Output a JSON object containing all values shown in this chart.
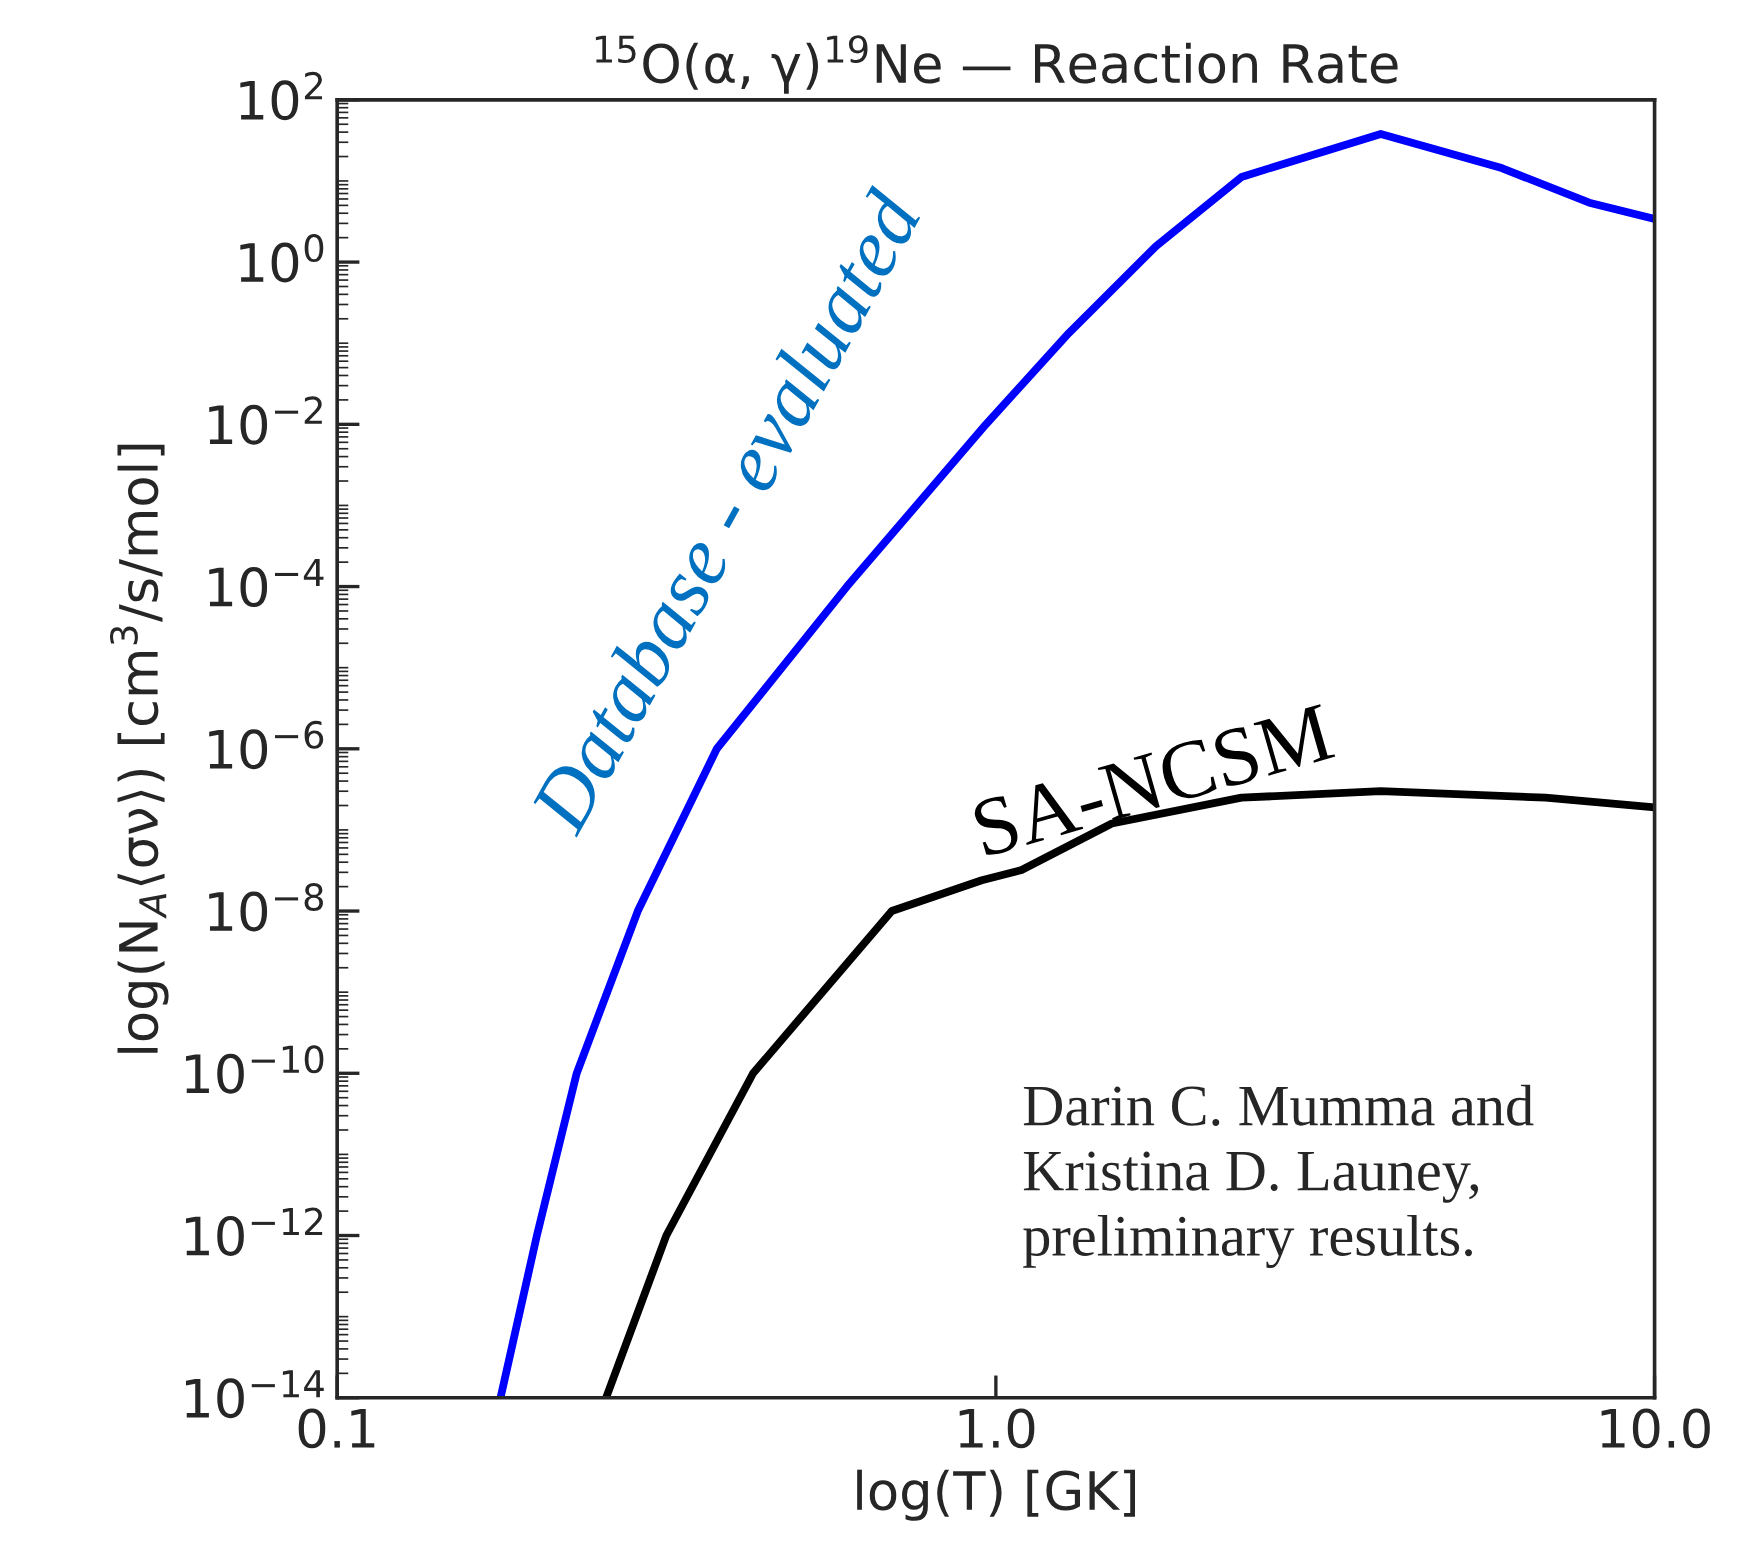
{
  "chart_data": {
    "type": "line",
    "title": "$^{15}$O(α, γ)$^{19}$Ne — Reaction Rate",
    "xlabel": "log(T) [GK]",
    "ylabel": "log(N$_{A}$⟨σν⟩) [cm$^{3}$/s/mol]",
    "log": "xy",
    "xlim": [
      0.1,
      10
    ],
    "ylim": [
      1e-14,
      100
    ],
    "xticks": [
      {
        "value": 0.1,
        "label": "0.1"
      },
      {
        "value": 1,
        "label": "1.0"
      },
      {
        "value": 10,
        "label": "10.0"
      }
    ],
    "yticks": [
      {
        "value": 1e-14,
        "label": "10$^{−14}$"
      },
      {
        "value": 1e-12,
        "label": "10$^{−12}$"
      },
      {
        "value": 1e-10,
        "label": "10$^{−10}$"
      },
      {
        "value": 1e-08,
        "label": "10$^{−8}$"
      },
      {
        "value": 1e-06,
        "label": "10$^{−6}$"
      },
      {
        "value": 0.0001,
        "label": "10$^{−4}$"
      },
      {
        "value": 0.01,
        "label": "10$^{−2}$"
      },
      {
        "value": 1,
        "label": "10$^{0}$"
      },
      {
        "value": 100,
        "label": "10$^{2}$"
      }
    ],
    "grid": false,
    "legend": false,
    "line_style": "solid",
    "marker": "none",
    "series": [
      {
        "name": "Database - evaluated",
        "color": "#0000ff",
        "x": [
          0.177,
          0.201,
          0.231,
          0.286,
          0.377,
          0.594,
          0.966,
          1.29,
          1.75,
          2.36,
          3.84,
          5.86,
          7.96,
          10
        ],
        "values": [
          1e-14,
          1e-12,
          1e-10,
          1e-08,
          1e-06,
          0.0001,
          0.01,
          0.133,
          1.57,
          11.2,
          38,
          14.4,
          5.4,
          3.4
        ]
      },
      {
        "name": "SA-NCSM",
        "color": "#000000",
        "x": [
          0.256,
          0.316,
          0.428,
          0.695,
          0.952,
          1.094,
          1.5,
          2.36,
          3.84,
          6.83,
          10
        ],
        "values": [
          1e-14,
          1e-12,
          1e-10,
          1e-08,
          2.4e-08,
          3.2e-08,
          1.2e-07,
          2.5e-07,
          3e-07,
          2.5e-07,
          1.9e-07
        ]
      }
    ],
    "annotations": [
      "Darin C. Mumma and\nKristina D. Launey,\npreliminary results."
    ]
  }
}
